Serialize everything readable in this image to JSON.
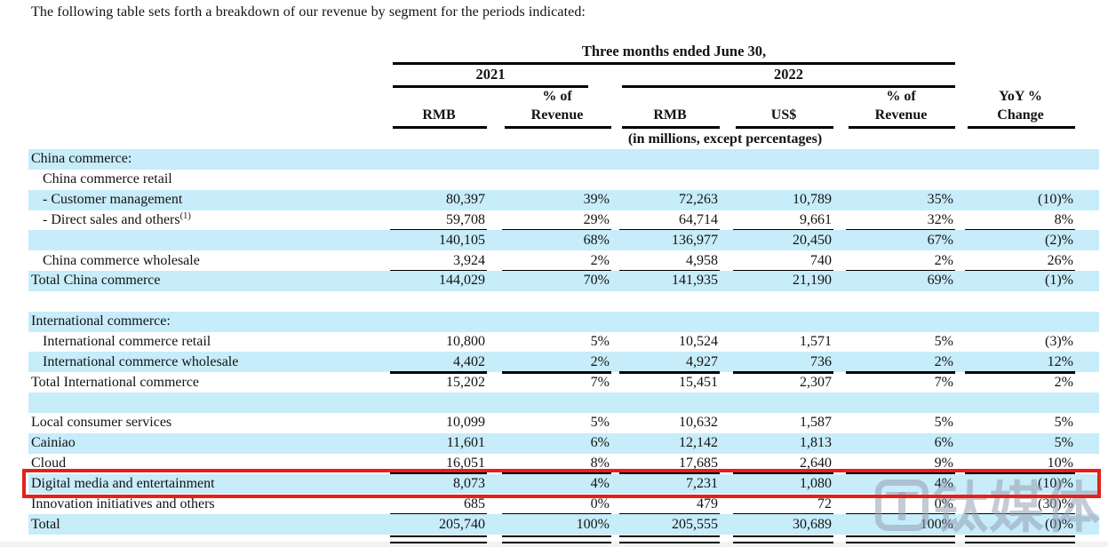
{
  "intro_text": "The following table sets forth a breakdown of our revenue by segment for the periods indicated:",
  "table": {
    "period_header": "Three months ended June 30,",
    "year_groups": [
      "2021",
      "2022"
    ],
    "columns": [
      {
        "top": "",
        "bottom": "RMB"
      },
      {
        "top": "% of",
        "bottom": "Revenue"
      },
      {
        "top": "",
        "bottom": "RMB"
      },
      {
        "top": "",
        "bottom": "US$"
      },
      {
        "top": "% of",
        "bottom": "Revenue"
      },
      {
        "top": "YoY %",
        "bottom": "Change"
      }
    ],
    "units_note": "(in millions, except percentages)",
    "rows": [
      {
        "label": "China commerce:",
        "indent": 0,
        "bg": "blue",
        "values": [
          "",
          "",
          "",
          "",
          "",
          ""
        ]
      },
      {
        "label": "China commerce retail",
        "indent": 1,
        "bg": "white",
        "values": [
          "",
          "",
          "",
          "",
          "",
          ""
        ]
      },
      {
        "label": "- Customer management",
        "indent": 1,
        "bg": "blue",
        "values": [
          "80,397",
          "39%",
          "72,263",
          "10,789",
          "35%",
          "(10)%"
        ]
      },
      {
        "label": "- Direct sales and others",
        "sup": "(1)",
        "indent": 1,
        "bg": "white",
        "rule": true,
        "values": [
          "59,708",
          "29%",
          "64,714",
          "9,661",
          "32%",
          "8%"
        ]
      },
      {
        "label": "",
        "indent": 0,
        "bg": "blue",
        "values": [
          "140,105",
          "68%",
          "136,977",
          "20,450",
          "67%",
          "(2)%"
        ]
      },
      {
        "label": "China commerce wholesale",
        "indent": 1,
        "bg": "white",
        "rule": true,
        "values": [
          "3,924",
          "2%",
          "4,958",
          "740",
          "2%",
          "26%"
        ]
      },
      {
        "label": "Total China commerce",
        "indent": 0,
        "bg": "blue",
        "values": [
          "144,029",
          "70%",
          "141,935",
          "21,190",
          "69%",
          "(1)%"
        ]
      },
      {
        "label": "",
        "indent": 0,
        "bg": "white",
        "values": [
          "",
          "",
          "",
          "",
          "",
          ""
        ]
      },
      {
        "label": "International commerce:",
        "indent": 0,
        "bg": "blue",
        "values": [
          "",
          "",
          "",
          "",
          "",
          ""
        ]
      },
      {
        "label": "International commerce retail",
        "indent": 1,
        "bg": "white",
        "values": [
          "10,800",
          "5%",
          "10,524",
          "1,571",
          "5%",
          "(3)%"
        ]
      },
      {
        "label": "International commerce wholesale",
        "indent": 1,
        "bg": "blue",
        "rule": true,
        "values": [
          "4,402",
          "2%",
          "4,927",
          "736",
          "2%",
          "12%"
        ]
      },
      {
        "label": "Total International commerce",
        "indent": 0,
        "bg": "white",
        "values": [
          "15,202",
          "7%",
          "15,451",
          "2,307",
          "7%",
          "2%"
        ]
      },
      {
        "label": "",
        "indent": 0,
        "bg": "blue",
        "values": [
          "",
          "",
          "",
          "",
          "",
          ""
        ]
      },
      {
        "label": "Local consumer services",
        "indent": 0,
        "bg": "white",
        "values": [
          "10,099",
          "5%",
          "10,632",
          "1,587",
          "5%",
          "5%"
        ]
      },
      {
        "label": "Cainiao",
        "indent": 0,
        "bg": "blue",
        "values": [
          "11,601",
          "6%",
          "12,142",
          "1,813",
          "6%",
          "5%"
        ]
      },
      {
        "label": "Cloud",
        "indent": 0,
        "bg": "white",
        "rule": true,
        "values": [
          "16,051",
          "8%",
          "17,685",
          "2,640",
          "9%",
          "10%"
        ]
      },
      {
        "label": "Digital media and entertainment",
        "indent": 0,
        "bg": "blue",
        "highlighted": true,
        "values": [
          "8,073",
          "4%",
          "7,231",
          "1,080",
          "4%",
          "(10)%"
        ]
      },
      {
        "label": "Innovation initiatives and others",
        "indent": 0,
        "bg": "white",
        "rule": true,
        "values": [
          "685",
          "0%",
          "479",
          "72",
          "0%",
          "(30)%"
        ]
      },
      {
        "label": "Total",
        "indent": 0,
        "bg": "blue",
        "dbl_rule": true,
        "values": [
          "205,740",
          "100%",
          "205,555",
          "30,689",
          "100%",
          "(0)%"
        ]
      }
    ]
  },
  "highlight": {
    "highlighted_row_label": "Digital media and entertainment",
    "box_color": "#e32119"
  },
  "watermark": {
    "logo_icon": "tmtpost-logo",
    "text": "钛媒体"
  },
  "colors": {
    "row_band_blue": "#c7ecfa",
    "text": "#131313",
    "rule_line": "#000000",
    "watermark_gray": "rgba(148,160,178,0.55)"
  }
}
